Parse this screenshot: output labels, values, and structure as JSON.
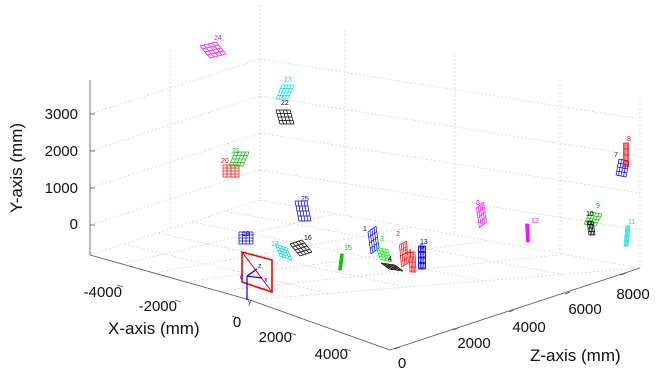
{
  "chart_data": {
    "type": "scatter",
    "title": "",
    "xlabel": "X-axis (mm)",
    "ylabel": "Y-axis (mm)",
    "zlabel": "Z-axis (mm)",
    "x_ticks": [
      "-4000",
      "-2000",
      "0",
      "2000",
      "4000"
    ],
    "y_ticks": [
      "0",
      "1000",
      "2000",
      "3000"
    ],
    "z_ticks": [
      "0",
      "2000",
      "4000",
      "6000",
      "8000"
    ],
    "xlim": [
      -5000,
      5000
    ],
    "ylim": [
      -1000,
      4000
    ],
    "zlim": [
      0,
      9000
    ],
    "grid": true,
    "camera": {
      "label": "c",
      "axes": [
        "x",
        "y",
        "z"
      ]
    },
    "boards": [
      {
        "id": "1",
        "color": "#0000ff"
      },
      {
        "id": "2",
        "color": "#ff0000"
      },
      {
        "id": "3",
        "color": "#00ff00"
      },
      {
        "id": "4",
        "color": "#000000"
      },
      {
        "id": "5",
        "color": "#0000ff"
      },
      {
        "id": "6",
        "color": "#ff00ff"
      },
      {
        "id": "7",
        "color": "#0000ff"
      },
      {
        "id": "8",
        "color": "#ff0000"
      },
      {
        "id": "9",
        "color": "#00c000"
      },
      {
        "id": "10",
        "color": "#000000"
      },
      {
        "id": "11",
        "color": "#00e0e0"
      },
      {
        "id": "12",
        "color": "#ff00ff"
      },
      {
        "id": "13",
        "color": "#0000ff"
      },
      {
        "id": "14",
        "color": "#ff0000"
      },
      {
        "id": "15",
        "color": "#00c000"
      },
      {
        "id": "16",
        "color": "#000000"
      },
      {
        "id": "17",
        "color": "#00e0e0"
      },
      {
        "id": "18",
        "color": "#0000ff"
      },
      {
        "id": "20",
        "color": "#ff0000"
      },
      {
        "id": "21",
        "color": "#00c000"
      },
      {
        "id": "22",
        "color": "#000000"
      },
      {
        "id": "23",
        "color": "#00e0e0"
      },
      {
        "id": "24",
        "color": "#ff00ff"
      },
      {
        "id": "25",
        "color": "#0000ff"
      }
    ]
  }
}
